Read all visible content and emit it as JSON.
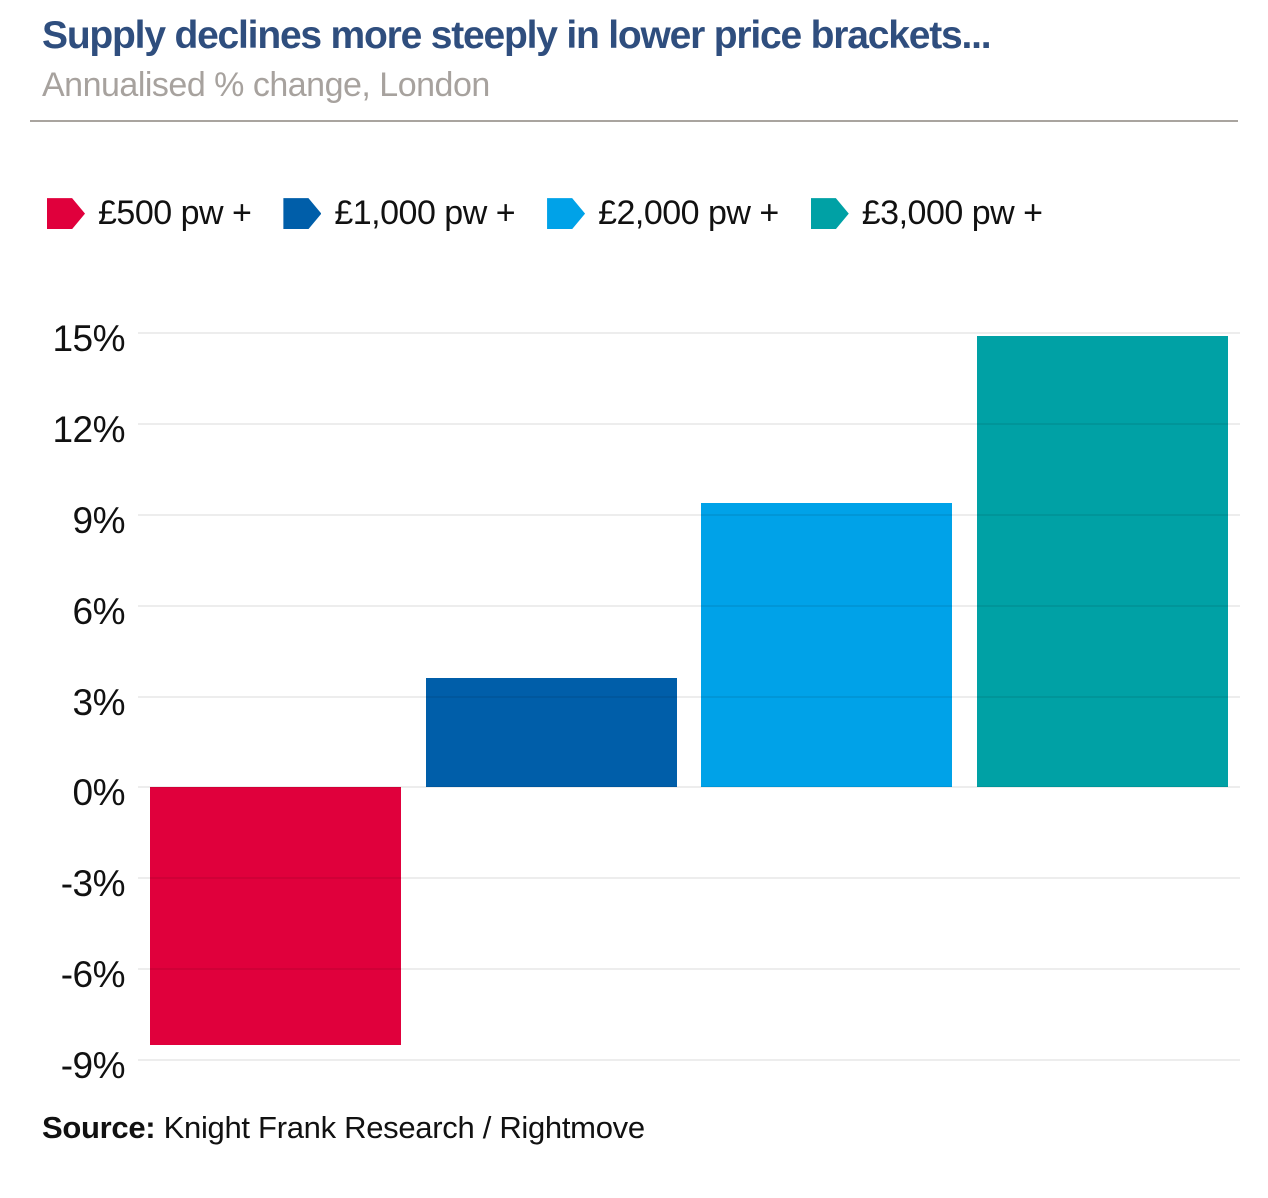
{
  "header": {
    "title": "Supply declines more steeply in lower price brackets...",
    "subtitle": "Annualised % change, London"
  },
  "chart_data": {
    "type": "bar",
    "title": "Supply declines more steeply in lower price brackets...",
    "subtitle": "Annualised % change, London",
    "categories": [
      "£500 pw +",
      "£1,000 pw +",
      "£2,000 pw +",
      "£3,000 pw +"
    ],
    "values": [
      -8.5,
      3.6,
      9.4,
      14.9
    ],
    "colors": [
      "#e0003c",
      "#005ea9",
      "#00a2e8",
      "#00a1a5"
    ],
    "ylim": [
      -9,
      15
    ],
    "yticks": [
      15,
      12,
      9,
      6,
      3,
      0,
      -3,
      -6,
      -9
    ],
    "ytick_labels": [
      "15%",
      "12%",
      "9%",
      "6%",
      "3%",
      "0%",
      "-3%",
      "-6%",
      "-9%"
    ],
    "grid": true,
    "legend_position": "top",
    "xlabel": "",
    "ylabel": ""
  },
  "source": {
    "label": "Source:",
    "text": " Knight Frank Research / Rightmove"
  },
  "colors": {
    "title_navy": "#2f4e7e",
    "subtitle_gray": "#a7a29e",
    "divider_gray": "#a9a49f",
    "gridline_gray": "#ededed",
    "bar_red": "#e0003c",
    "bar_dark_blue": "#005ea9",
    "bar_light_blue": "#00a2e8",
    "bar_teal": "#00a1a5"
  }
}
